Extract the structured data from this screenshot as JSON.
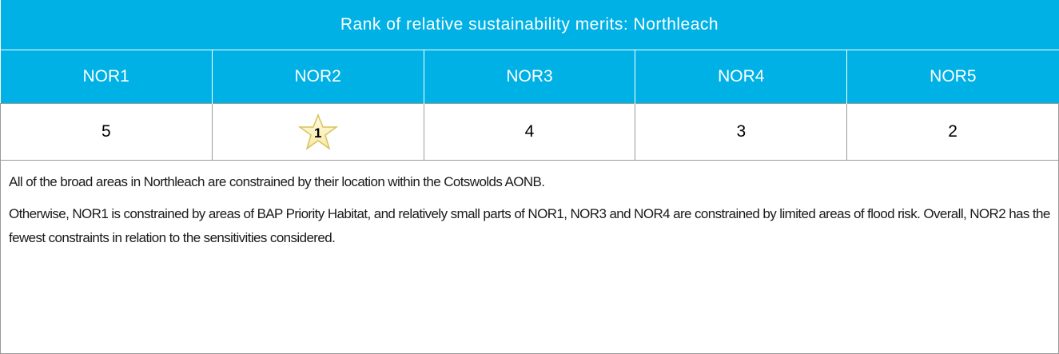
{
  "table": {
    "title": "Rank of relative sustainability merits: Northleach",
    "headers": [
      "NOR1",
      "NOR2",
      "NOR3",
      "NOR4",
      "NOR5"
    ],
    "ranks": [
      5,
      1,
      4,
      3,
      2
    ]
  },
  "notes": [
    "All of the broad areas in Northleach are constrained by their location within the Cotswolds AONB.",
    "Otherwise, NOR1 is constrained by areas of BAP Priority Habitat, and relatively small parts of NOR1, NOR3 and NOR4 are constrained by limited areas of flood risk. Overall, NOR2 has the fewest constraints in relation to the sensitivities considered."
  ]
}
